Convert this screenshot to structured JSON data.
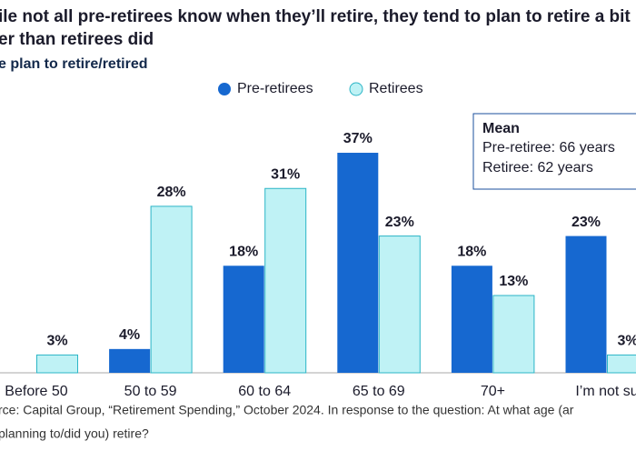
{
  "chart_data": {
    "type": "bar",
    "title": [
      "ile not all pre-retirees know when they’ll retire, they tend to plan to retire a bit",
      "er than retirees did"
    ],
    "subtitle": "e plan to retire/retired",
    "categories": [
      "Before 50",
      "50 to 59",
      "60 to 64",
      "65 to 69",
      "70+",
      "I’m not su"
    ],
    "series": [
      {
        "name": "Pre-retirees",
        "color": "#1668d0",
        "values": [
          null,
          4,
          18,
          37,
          18,
          23
        ],
        "value_labels": [
          null,
          "4%",
          "18%",
          "37%",
          "18%",
          "23%"
        ]
      },
      {
        "name": "Retirees",
        "color": "#bff2f5",
        "values": [
          3,
          28,
          31,
          23,
          13,
          3
        ],
        "value_labels": [
          "3%",
          "28%",
          "31%",
          "23%",
          "13%",
          "3%"
        ]
      }
    ],
    "annotation": {
      "heading": "Mean",
      "lines": [
        "Pre-retiree: 66 years",
        "Retiree: 62 years"
      ]
    },
    "source": [
      "rce: Capital Group, “Retirement Spending,” October 2024. In response to the question: At what age (ar",
      "planning to/did you) retire?"
    ]
  }
}
